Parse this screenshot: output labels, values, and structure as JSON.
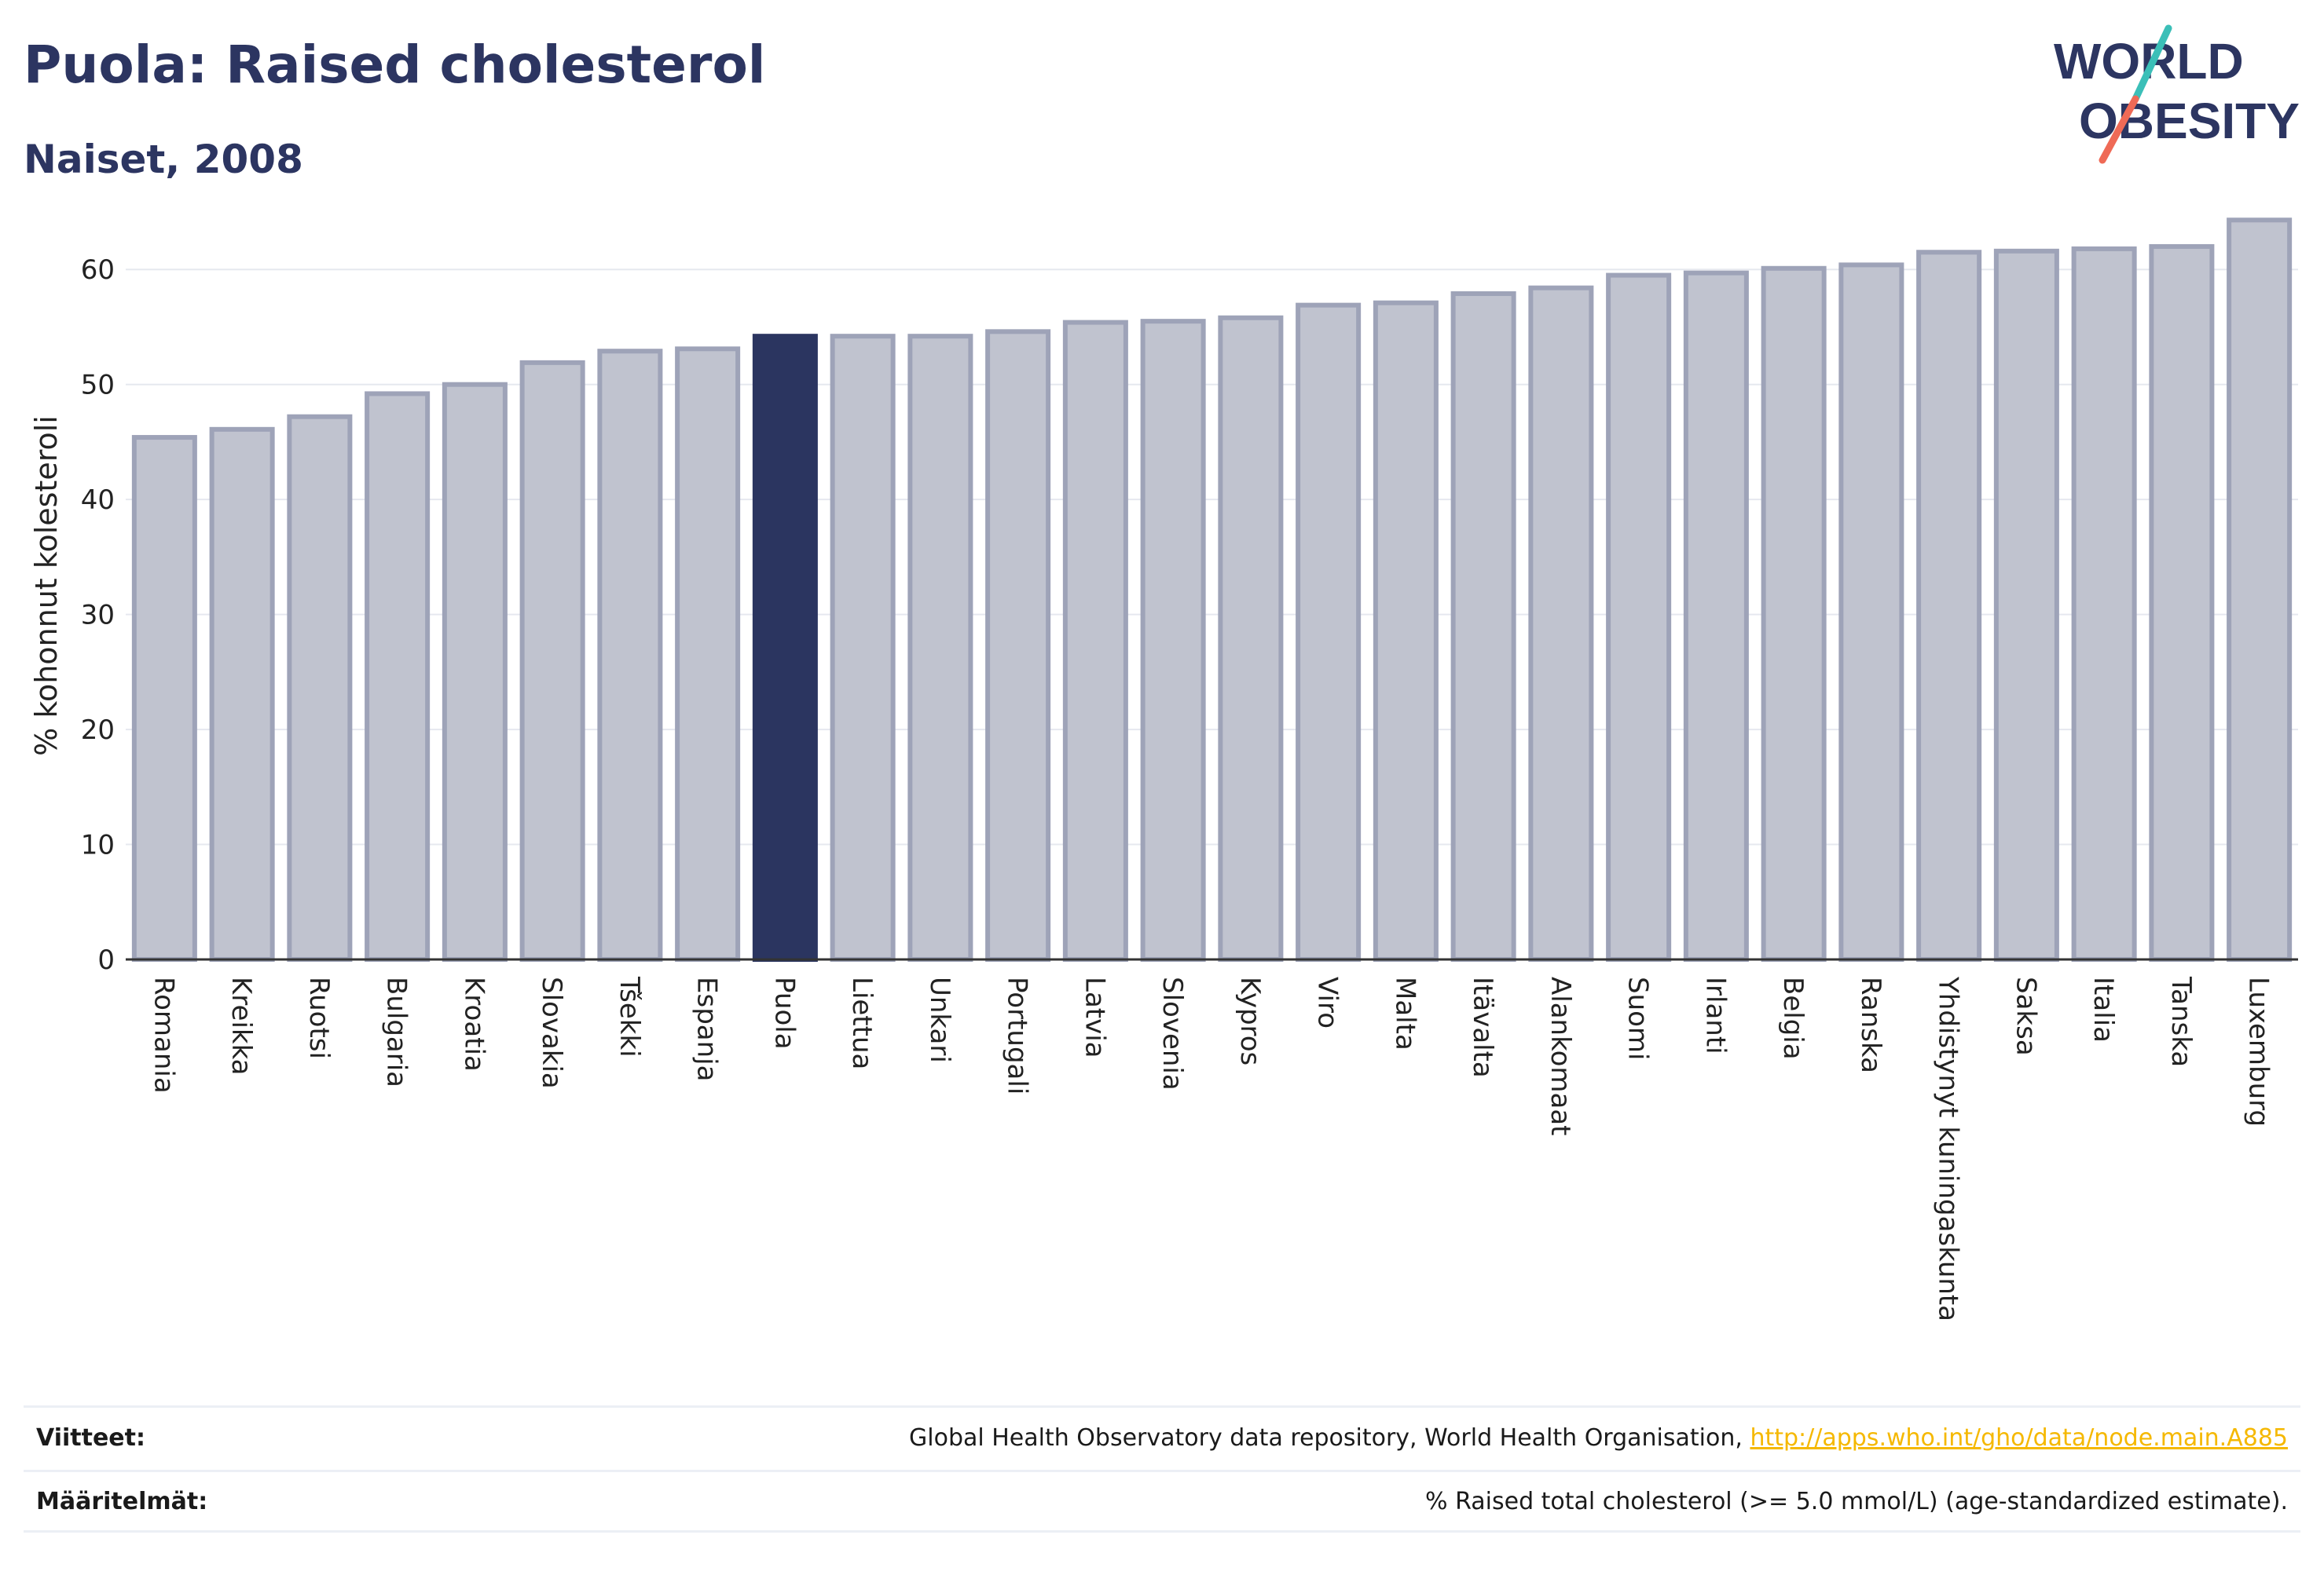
{
  "header": {
    "title": "Puola: Raised cholesterol",
    "subtitle": "Naiset, 2008"
  },
  "logo": {
    "line1": "WORLD",
    "line2": "OBESITY",
    "colors": {
      "text": "#2c3561",
      "slash_teal": "#3bbfb8",
      "slash_coral": "#ef6a56"
    }
  },
  "chart_data": {
    "type": "bar",
    "title": "Puola: Raised cholesterol",
    "subtitle": "Naiset, 2008",
    "xlabel": "",
    "ylabel": "% kohonnut kolesteroli",
    "ylim": [
      0,
      65
    ],
    "yticks": [
      0,
      10,
      20,
      30,
      40,
      50,
      60
    ],
    "grid": true,
    "highlight": "Puola",
    "colors": {
      "bar": "#c0c3cf",
      "bar_border": "#9ea3b8",
      "highlight": "#2b3560"
    },
    "categories": [
      "Romania",
      "Kreikka",
      "Ruotsi",
      "Bulgaria",
      "Kroatia",
      "Slovakia",
      "Tšekki",
      "Espanja",
      "Puola",
      "Liettua",
      "Unkari",
      "Portugali",
      "Latvia",
      "Slovenia",
      "Kypros",
      "Viro",
      "Malta",
      "Itävalta",
      "Alankomaat",
      "Suomi",
      "Irlanti",
      "Belgia",
      "Ranska",
      "Yhdistynyt kuningaskunta",
      "Saksa",
      "Italia",
      "Tanska",
      "Luxemburg"
    ],
    "values": [
      45.4,
      46.1,
      47.2,
      49.2,
      50.0,
      51.9,
      52.9,
      53.1,
      54.2,
      54.2,
      54.2,
      54.6,
      55.4,
      55.5,
      55.8,
      56.9,
      57.1,
      57.9,
      58.4,
      59.5,
      59.7,
      60.1,
      60.4,
      61.5,
      61.6,
      61.8,
      62.0,
      64.3
    ]
  },
  "footer": {
    "references_label": "Viitteet:",
    "references_text": "Global Health Observatory data repository, World Health Organisation, ",
    "references_link": "http://apps.who.int/gho/data/node.main.A885",
    "definitions_label": "Määritelmät:",
    "definitions_text": "% Raised total cholesterol (>= 5.0 mmol/L) (age-standardized estimate)."
  }
}
